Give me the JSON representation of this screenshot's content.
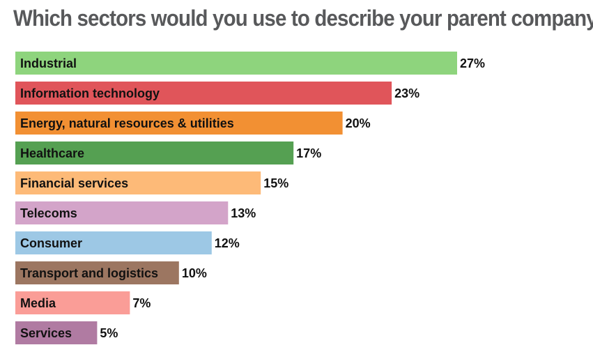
{
  "chart_data": {
    "type": "bar",
    "orientation": "horizontal",
    "title": "Which sectors would you use to describe your parent company?",
    "categories": [
      "Industrial",
      "Information technology",
      "Energy, natural resources & utilities",
      "Healthcare",
      "Financial services",
      "Telecoms",
      "Consumer",
      "Transport and logistics",
      "Media",
      "Services"
    ],
    "values": [
      27,
      23,
      20,
      17,
      15,
      13,
      12,
      10,
      7,
      5
    ],
    "value_labels": [
      "27%",
      "23%",
      "20%",
      "17%",
      "15%",
      "13%",
      "12%",
      "10%",
      "7%",
      "5%"
    ],
    "colors": [
      "#8ed47d",
      "#e0555a",
      "#f29033",
      "#55a052",
      "#fdba78",
      "#d3a4c9",
      "#9dc8e5",
      "#9c7661",
      "#fa9d97",
      "#b07ba2"
    ],
    "value_unit": "%",
    "xlim": [
      0,
      27
    ],
    "grid": false,
    "legend": "none"
  }
}
